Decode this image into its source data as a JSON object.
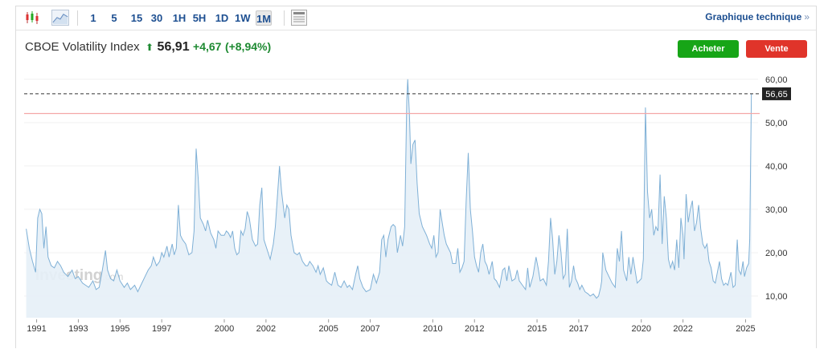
{
  "toolbar": {
    "icons": [
      "candlestick-icon",
      "area-chart-icon",
      "table-icon"
    ],
    "timeframes": [
      "1",
      "5",
      "15",
      "30",
      "1H",
      "5H",
      "1D",
      "1W",
      "1M"
    ],
    "active_timeframe": "1M",
    "technical_link": "Graphique technique",
    "technical_arrow": "»"
  },
  "quote": {
    "name": "CBOE Volatility Index",
    "arrow": "⬆",
    "price": "56,91",
    "change": "+4,67",
    "change_pct": "(+8,94%)",
    "up_color": "#1e8a32"
  },
  "actions": {
    "buy": "Acheter",
    "sell": "Vente"
  },
  "watermark": "Investing.com",
  "chart_data": {
    "type": "area",
    "series_color": "#7fb0d6",
    "fill_color": "#e6eff7",
    "ylim": [
      5,
      62
    ],
    "xlim": [
      1990.4,
      2025.6
    ],
    "y_ticks": [
      10,
      20,
      30,
      40,
      50,
      60
    ],
    "y_tick_labels": [
      "10,00",
      "20,00",
      "30,00",
      "40,00",
      "50,00",
      "60,00"
    ],
    "x_ticks": [
      1991,
      1993,
      1995,
      1997,
      2000,
      2002,
      2005,
      2007,
      2010,
      2012,
      2015,
      2017,
      2020,
      2022,
      2025
    ],
    "current_price": 56.65,
    "current_price_label": "56,65",
    "reference_line": 52.1,
    "points": [
      [
        1990.5,
        25.5
      ],
      [
        1990.65,
        21
      ],
      [
        1990.8,
        18
      ],
      [
        1990.95,
        15.5
      ],
      [
        1991.05,
        28
      ],
      [
        1991.15,
        30
      ],
      [
        1991.25,
        29
      ],
      [
        1991.35,
        21
      ],
      [
        1991.45,
        26
      ],
      [
        1991.55,
        19
      ],
      [
        1991.7,
        17
      ],
      [
        1991.85,
        16.5
      ],
      [
        1992.0,
        18
      ],
      [
        1992.15,
        17
      ],
      [
        1992.3,
        15.5
      ],
      [
        1992.5,
        14.5
      ],
      [
        1992.7,
        16
      ],
      [
        1992.85,
        14
      ],
      [
        1993.0,
        14.5
      ],
      [
        1993.2,
        13
      ],
      [
        1993.35,
        12.5
      ],
      [
        1993.5,
        12
      ],
      [
        1993.7,
        13.5
      ],
      [
        1993.85,
        11.5
      ],
      [
        1994.0,
        12
      ],
      [
        1994.15,
        16
      ],
      [
        1994.3,
        20.5
      ],
      [
        1994.4,
        16
      ],
      [
        1994.55,
        14
      ],
      [
        1994.7,
        13.5
      ],
      [
        1994.85,
        16
      ],
      [
        1995.0,
        13.5
      ],
      [
        1995.2,
        12
      ],
      [
        1995.35,
        13
      ],
      [
        1995.5,
        11.5
      ],
      [
        1995.7,
        12.5
      ],
      [
        1995.85,
        11
      ],
      [
        1996.0,
        12.5
      ],
      [
        1996.2,
        14.5
      ],
      [
        1996.35,
        16
      ],
      [
        1996.5,
        17
      ],
      [
        1996.6,
        19
      ],
      [
        1996.75,
        17
      ],
      [
        1996.9,
        18
      ],
      [
        1997.0,
        20
      ],
      [
        1997.1,
        19
      ],
      [
        1997.25,
        21.5
      ],
      [
        1997.35,
        19
      ],
      [
        1997.5,
        22
      ],
      [
        1997.6,
        19.5
      ],
      [
        1997.7,
        21
      ],
      [
        1997.8,
        31
      ],
      [
        1997.9,
        24
      ],
      [
        1998.0,
        23
      ],
      [
        1998.15,
        22
      ],
      [
        1998.3,
        19.5
      ],
      [
        1998.45,
        20
      ],
      [
        1998.55,
        25
      ],
      [
        1998.65,
        44
      ],
      [
        1998.75,
        37
      ],
      [
        1998.85,
        28
      ],
      [
        1999.0,
        26.5
      ],
      [
        1999.1,
        25
      ],
      [
        1999.2,
        27.5
      ],
      [
        1999.35,
        24.5
      ],
      [
        1999.5,
        23
      ],
      [
        1999.6,
        21
      ],
      [
        1999.7,
        25
      ],
      [
        1999.85,
        24
      ],
      [
        2000.0,
        24
      ],
      [
        2000.1,
        25
      ],
      [
        2000.2,
        24.5
      ],
      [
        2000.3,
        23.5
      ],
      [
        2000.4,
        25
      ],
      [
        2000.5,
        21
      ],
      [
        2000.6,
        19.5
      ],
      [
        2000.7,
        20
      ],
      [
        2000.8,
        25
      ],
      [
        2000.9,
        24
      ],
      [
        2001.0,
        25.5
      ],
      [
        2001.1,
        29.5
      ],
      [
        2001.2,
        28
      ],
      [
        2001.35,
        23
      ],
      [
        2001.5,
        21.5
      ],
      [
        2001.6,
        22
      ],
      [
        2001.7,
        31
      ],
      [
        2001.8,
        35
      ],
      [
        2001.9,
        23
      ],
      [
        2002.0,
        21.5
      ],
      [
        2002.1,
        20
      ],
      [
        2002.2,
        18.5
      ],
      [
        2002.35,
        22
      ],
      [
        2002.45,
        26
      ],
      [
        2002.55,
        33
      ],
      [
        2002.65,
        40
      ],
      [
        2002.75,
        34
      ],
      [
        2002.9,
        28
      ],
      [
        2003.0,
        31
      ],
      [
        2003.1,
        30
      ],
      [
        2003.2,
        24
      ],
      [
        2003.35,
        20
      ],
      [
        2003.5,
        19.5
      ],
      [
        2003.6,
        20
      ],
      [
        2003.75,
        18
      ],
      [
        2003.9,
        17
      ],
      [
        2004.0,
        17
      ],
      [
        2004.1,
        18
      ],
      [
        2004.25,
        17
      ],
      [
        2004.4,
        15.5
      ],
      [
        2004.5,
        17
      ],
      [
        2004.6,
        15
      ],
      [
        2004.75,
        16.5
      ],
      [
        2004.9,
        13.5
      ],
      [
        2005.0,
        13
      ],
      [
        2005.15,
        12.5
      ],
      [
        2005.3,
        15.5
      ],
      [
        2005.45,
        12.5
      ],
      [
        2005.6,
        12
      ],
      [
        2005.75,
        13.5
      ],
      [
        2005.9,
        12
      ],
      [
        2006.0,
        12.5
      ],
      [
        2006.15,
        11.5
      ],
      [
        2006.3,
        15
      ],
      [
        2006.4,
        17
      ],
      [
        2006.5,
        14
      ],
      [
        2006.65,
        12
      ],
      [
        2006.8,
        11
      ],
      [
        2007.0,
        11.5
      ],
      [
        2007.15,
        15
      ],
      [
        2007.3,
        13
      ],
      [
        2007.45,
        15.5
      ],
      [
        2007.55,
        23
      ],
      [
        2007.65,
        24
      ],
      [
        2007.75,
        19
      ],
      [
        2007.85,
        23
      ],
      [
        2008.0,
        26
      ],
      [
        2008.1,
        26.5
      ],
      [
        2008.2,
        26
      ],
      [
        2008.3,
        20
      ],
      [
        2008.45,
        24
      ],
      [
        2008.55,
        21.5
      ],
      [
        2008.65,
        26
      ],
      [
        2008.75,
        55
      ],
      [
        2008.8,
        60
      ],
      [
        2008.88,
        52
      ],
      [
        2008.95,
        40.5
      ],
      [
        2009.05,
        45
      ],
      [
        2009.15,
        46
      ],
      [
        2009.25,
        36
      ],
      [
        2009.35,
        29
      ],
      [
        2009.5,
        26
      ],
      [
        2009.6,
        25
      ],
      [
        2009.7,
        24
      ],
      [
        2009.85,
        22
      ],
      [
        2009.95,
        21
      ],
      [
        2010.05,
        24
      ],
      [
        2010.15,
        19
      ],
      [
        2010.25,
        20
      ],
      [
        2010.35,
        30
      ],
      [
        2010.45,
        27
      ],
      [
        2010.55,
        24
      ],
      [
        2010.65,
        22
      ],
      [
        2010.75,
        21
      ],
      [
        2010.85,
        20
      ],
      [
        2010.95,
        17.5
      ],
      [
        2011.1,
        17.5
      ],
      [
        2011.2,
        21
      ],
      [
        2011.3,
        15.5
      ],
      [
        2011.4,
        16.5
      ],
      [
        2011.5,
        18
      ],
      [
        2011.6,
        32
      ],
      [
        2011.7,
        43
      ],
      [
        2011.8,
        30
      ],
      [
        2011.9,
        25
      ],
      [
        2012.0,
        19
      ],
      [
        2012.1,
        17
      ],
      [
        2012.2,
        15.5
      ],
      [
        2012.3,
        20
      ],
      [
        2012.4,
        22
      ],
      [
        2012.5,
        18
      ],
      [
        2012.6,
        17
      ],
      [
        2012.7,
        15
      ],
      [
        2012.85,
        18
      ],
      [
        2012.95,
        14
      ],
      [
        2013.05,
        13.5
      ],
      [
        2013.2,
        12
      ],
      [
        2013.35,
        16
      ],
      [
        2013.45,
        16.5
      ],
      [
        2013.55,
        13.5
      ],
      [
        2013.65,
        17
      ],
      [
        2013.8,
        13.5
      ],
      [
        2013.95,
        14
      ],
      [
        2014.05,
        16
      ],
      [
        2014.15,
        13.5
      ],
      [
        2014.3,
        12.5
      ],
      [
        2014.45,
        11.5
      ],
      [
        2014.55,
        16.5
      ],
      [
        2014.65,
        12
      ],
      [
        2014.8,
        14.5
      ],
      [
        2014.95,
        19
      ],
      [
        2015.05,
        16.5
      ],
      [
        2015.15,
        13.5
      ],
      [
        2015.3,
        14
      ],
      [
        2015.45,
        12.5
      ],
      [
        2015.55,
        18
      ],
      [
        2015.65,
        28
      ],
      [
        2015.75,
        23
      ],
      [
        2015.85,
        15
      ],
      [
        2015.95,
        18
      ],
      [
        2016.05,
        24
      ],
      [
        2016.15,
        20
      ],
      [
        2016.25,
        14
      ],
      [
        2016.35,
        15
      ],
      [
        2016.45,
        25.5
      ],
      [
        2016.55,
        12
      ],
      [
        2016.65,
        13.5
      ],
      [
        2016.75,
        17
      ],
      [
        2016.85,
        14
      ],
      [
        2016.95,
        13
      ],
      [
        2017.05,
        11.5
      ],
      [
        2017.15,
        12.5
      ],
      [
        2017.3,
        11
      ],
      [
        2017.45,
        10.5
      ],
      [
        2017.55,
        10
      ],
      [
        2017.7,
        10.5
      ],
      [
        2017.85,
        9.5
      ],
      [
        2017.95,
        10
      ],
      [
        2018.05,
        12
      ],
      [
        2018.1,
        13.5
      ],
      [
        2018.15,
        20
      ],
      [
        2018.3,
        16
      ],
      [
        2018.45,
        14.5
      ],
      [
        2018.6,
        13
      ],
      [
        2018.75,
        12
      ],
      [
        2018.85,
        21
      ],
      [
        2018.95,
        18
      ],
      [
        2019.05,
        25
      ],
      [
        2019.15,
        16
      ],
      [
        2019.3,
        13.5
      ],
      [
        2019.4,
        19
      ],
      [
        2019.5,
        15
      ],
      [
        2019.6,
        19
      ],
      [
        2019.7,
        16
      ],
      [
        2019.8,
        13
      ],
      [
        2019.9,
        13.5
      ],
      [
        2020.0,
        14
      ],
      [
        2020.1,
        18.5
      ],
      [
        2020.2,
        53.5
      ],
      [
        2020.3,
        34
      ],
      [
        2020.4,
        28
      ],
      [
        2020.5,
        30
      ],
      [
        2020.6,
        24
      ],
      [
        2020.7,
        26
      ],
      [
        2020.8,
        25
      ],
      [
        2020.9,
        38
      ],
      [
        2021.0,
        22
      ],
      [
        2021.1,
        33
      ],
      [
        2021.2,
        28
      ],
      [
        2021.3,
        18.5
      ],
      [
        2021.4,
        16.5
      ],
      [
        2021.5,
        18
      ],
      [
        2021.6,
        16
      ],
      [
        2021.7,
        23
      ],
      [
        2021.8,
        16.5
      ],
      [
        2021.9,
        28
      ],
      [
        2022.0,
        24
      ],
      [
        2022.05,
        18.5
      ],
      [
        2022.15,
        33.5
      ],
      [
        2022.25,
        27
      ],
      [
        2022.35,
        30
      ],
      [
        2022.45,
        32
      ],
      [
        2022.55,
        25
      ],
      [
        2022.65,
        27
      ],
      [
        2022.75,
        31
      ],
      [
        2022.85,
        25.5
      ],
      [
        2022.95,
        22
      ],
      [
        2023.05,
        21
      ],
      [
        2023.15,
        22
      ],
      [
        2023.25,
        18
      ],
      [
        2023.35,
        16.5
      ],
      [
        2023.45,
        13.5
      ],
      [
        2023.55,
        13
      ],
      [
        2023.65,
        15.5
      ],
      [
        2023.75,
        18
      ],
      [
        2023.85,
        14
      ],
      [
        2023.95,
        12.5
      ],
      [
        2024.05,
        13
      ],
      [
        2024.15,
        12.5
      ],
      [
        2024.3,
        15.5
      ],
      [
        2024.4,
        12
      ],
      [
        2024.5,
        12.5
      ],
      [
        2024.6,
        23
      ],
      [
        2024.68,
        16
      ],
      [
        2024.78,
        15
      ],
      [
        2024.88,
        18
      ],
      [
        2024.95,
        14.5
      ],
      [
        2025.05,
        16.5
      ],
      [
        2025.15,
        17.5
      ],
      [
        2025.2,
        23
      ],
      [
        2025.28,
        56.65
      ]
    ]
  }
}
